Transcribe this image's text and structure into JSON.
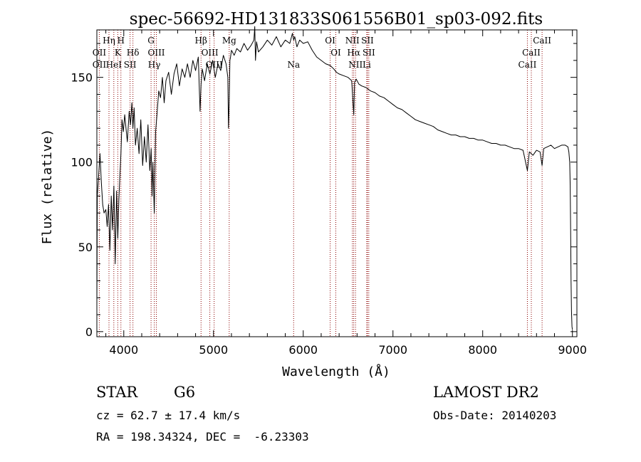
{
  "chart_data": {
    "type": "line",
    "title": "spec-56692-HD131833S061556B01_sp03-092.fits",
    "xlabel": "Wavelength (Å)",
    "ylabel": "Flux (relative)",
    "xlim": [
      3700,
      9050
    ],
    "ylim": [
      -3,
      178
    ],
    "xticks": [
      4000,
      5000,
      6000,
      7000,
      8000,
      9000
    ],
    "xtick_labels": [
      "4000",
      "5000",
      "6000",
      "7000",
      "8000",
      "9000"
    ],
    "yticks": [
      0,
      50,
      100,
      150
    ],
    "ytick_labels": [
      "0",
      "50",
      "100",
      "150"
    ],
    "grid": false,
    "line_color": "#000000",
    "marker_color": "#8b0000",
    "series": [
      {
        "x": [
          3700,
          3705,
          3720,
          3735,
          3750,
          3765,
          3780,
          3800,
          3815,
          3830,
          3845,
          3860,
          3875,
          3890,
          3905,
          3920,
          3933,
          3945,
          3955,
          3968,
          3980,
          3995,
          4010,
          4025,
          4040,
          4060,
          4075,
          4090,
          4102,
          4115,
          4130,
          4150,
          4170,
          4190,
          4210,
          4230,
          4250,
          4270,
          4290,
          4305,
          4315,
          4325,
          4340,
          4355,
          4370,
          4390,
          4410,
          4430,
          4450,
          4470,
          4500,
          4530,
          4560,
          4590,
          4620,
          4650,
          4680,
          4710,
          4740,
          4770,
          4800,
          4830,
          4850,
          4861,
          4875,
          4900,
          4930,
          4960,
          4990,
          5020,
          5050,
          5080,
          5110,
          5140,
          5160,
          5167,
          5175,
          5183,
          5190,
          5200,
          5230,
          5260,
          5300,
          5340,
          5380,
          5420,
          5450,
          5460,
          5468,
          5480,
          5500,
          5550,
          5600,
          5650,
          5700,
          5750,
          5800,
          5850,
          5880,
          5893,
          5905,
          5930,
          5960,
          6000,
          6050,
          6100,
          6150,
          6200,
          6250,
          6300,
          6340,
          6370,
          6400,
          6450,
          6500,
          6540,
          6555,
          6563,
          6572,
          6590,
          6620,
          6650,
          6700,
          6750,
          6800,
          6850,
          6900,
          6950,
          7000,
          7050,
          7100,
          7150,
          7200,
          7250,
          7300,
          7350,
          7400,
          7450,
          7500,
          7550,
          7600,
          7650,
          7700,
          7750,
          7800,
          7850,
          7900,
          7950,
          8000,
          8050,
          8100,
          8150,
          8200,
          8250,
          8300,
          8350,
          8400,
          8450,
          8498,
          8520,
          8542,
          8560,
          8600,
          8640,
          8662,
          8680,
          8720,
          8760,
          8800,
          8840,
          8880,
          8920,
          8950,
          8960,
          8970,
          8975,
          8980,
          8985,
          8990,
          8995,
          9000
        ],
        "y": [
          15,
          80,
          92,
          105,
          88,
          75,
          70,
          72,
          62,
          75,
          48,
          80,
          60,
          86,
          40,
          83,
          55,
          78,
          90,
          105,
          125,
          118,
          128,
          120,
          112,
          130,
          122,
          135,
          120,
          132,
          110,
          120,
          105,
          125,
          98,
          115,
          100,
          122,
          95,
          108,
          80,
          100,
          70,
          118,
          128,
          142,
          138,
          150,
          135,
          148,
          153,
          140,
          152,
          158,
          145,
          155,
          150,
          158,
          150,
          160,
          154,
          162,
          130,
          146,
          155,
          148,
          158,
          152,
          160,
          150,
          158,
          154,
          163,
          158,
          150,
          120,
          135,
          160,
          162,
          166,
          163,
          167,
          165,
          170,
          166,
          169,
          172,
          180,
          160,
          171,
          165,
          168,
          172,
          169,
          174,
          168,
          172,
          170,
          176,
          172,
          174,
          168,
          172,
          170,
          171,
          166,
          162,
          160,
          158,
          157,
          155,
          153,
          152,
          151,
          150,
          148,
          135,
          128,
          147,
          149,
          146,
          145,
          144,
          142,
          141,
          139,
          138,
          136,
          134,
          132,
          131,
          129,
          127,
          125,
          124,
          123,
          122,
          121,
          119,
          118,
          117,
          116,
          116,
          115,
          115,
          114,
          114,
          113,
          113,
          112,
          111,
          111,
          110,
          110,
          109,
          108,
          108,
          107,
          95,
          106,
          105,
          104,
          107,
          106,
          98,
          108,
          109,
          110,
          108,
          109,
          110,
          110,
          109,
          106,
          100,
          86,
          60,
          30,
          12,
          3,
          1
        ]
      }
    ],
    "line_markers": [
      {
        "label": "OII",
        "x": 3727,
        "row": 2
      },
      {
        "label": "OII",
        "x": 3727,
        "row": 3
      },
      {
        "label": "Hη",
        "x": 3835,
        "row": 1
      },
      {
        "label": "HeI",
        "x": 3889,
        "row": 3
      },
      {
        "label": "K",
        "x": 3933,
        "row": 2
      },
      {
        "label": "H",
        "x": 3968,
        "row": 1
      },
      {
        "label": "Hδ",
        "x": 4102,
        "row": 2
      },
      {
        "label": "SII",
        "x": 4070,
        "row": 3
      },
      {
        "label": "G",
        "x": 4304,
        "row": 1
      },
      {
        "label": "OIII",
        "x": 4363,
        "row": 2
      },
      {
        "label": "Hγ",
        "x": 4340,
        "row": 3
      },
      {
        "label": "Hβ",
        "x": 4861,
        "row": 1
      },
      {
        "label": "OIII",
        "x": 4959,
        "row": 2
      },
      {
        "label": "OIII",
        "x": 5007,
        "row": 3
      },
      {
        "label": "Mg",
        "x": 5175,
        "row": 1
      },
      {
        "label": "Na",
        "x": 5893,
        "row": 3
      },
      {
        "label": "OI",
        "x": 6300,
        "row": 1
      },
      {
        "label": "OI",
        "x": 6363,
        "row": 2
      },
      {
        "label": "NII",
        "x": 6548,
        "row": 1
      },
      {
        "label": "Hα",
        "x": 6563,
        "row": 2
      },
      {
        "label": "NII",
        "x": 6583,
        "row": 3
      },
      {
        "label": "SII",
        "x": 6716,
        "row": 1
      },
      {
        "label": "SII",
        "x": 6731,
        "row": 2
      },
      {
        "label": "Li",
        "x": 6708,
        "row": 3
      },
      {
        "label": "CaII",
        "x": 8498,
        "row": 3
      },
      {
        "label": "CaII",
        "x": 8542,
        "row": 2
      },
      {
        "label": "CaII",
        "x": 8662,
        "row": 1
      }
    ]
  },
  "info": {
    "object_class": "STAR",
    "subclass": "G6",
    "survey": "LAMOST DR2",
    "redshift": "cz = 62.7 ± 17.4 km/s",
    "obs_date": "Obs-Date: 20140203",
    "coords": "RA = 198.34324, DEC =  -6.23303"
  }
}
